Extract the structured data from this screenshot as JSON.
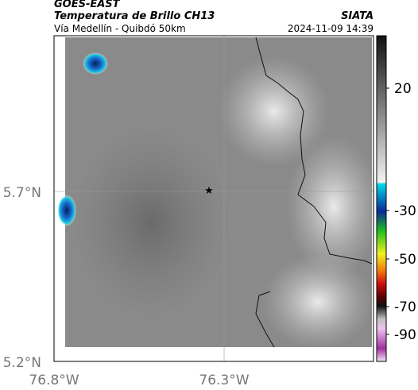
{
  "header": {
    "title": "GOES-EAST",
    "product": "Temperatura de Brillo CH13",
    "source": "SIATA",
    "region": "Vía Medellín - Quibdó 50km",
    "timestamp": "2024-11-09 14:39"
  },
  "axes": {
    "y_labels": [
      "5.7°N",
      "5.2°N"
    ],
    "x_labels": [
      "76.8°W",
      "76.3°W"
    ]
  },
  "colorbar": {
    "ticks": [
      20,
      -30,
      -50,
      -70,
      -90
    ]
  }
}
